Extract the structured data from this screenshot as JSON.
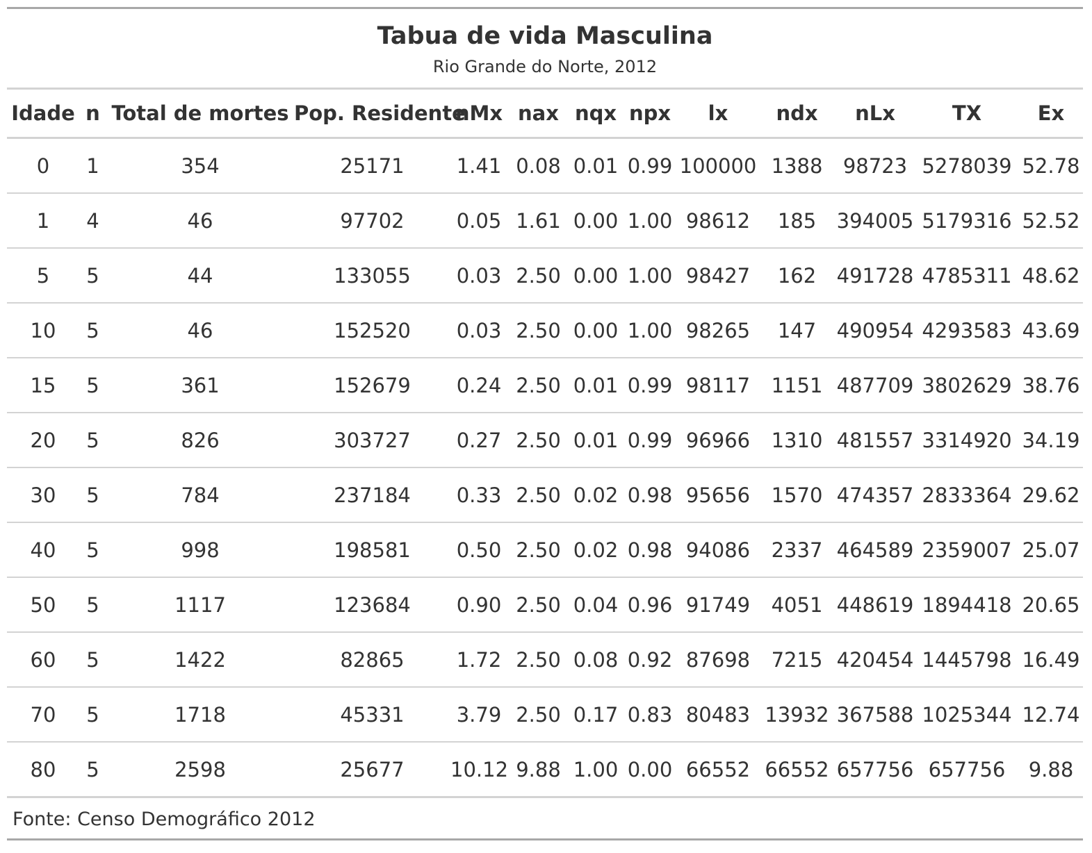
{
  "header": {
    "title": "Tabua de vida Masculina",
    "subtitle": "Rio Grande do Norte, 2012"
  },
  "columns": [
    "Idade",
    "n",
    "Total de mortes",
    "Pop. Residente",
    "nMx",
    "nax",
    "nqx",
    "npx",
    "lx",
    "ndx",
    "nLx",
    "TX",
    "Ex"
  ],
  "rows": [
    [
      "0",
      "1",
      "354",
      "25171",
      "1.41",
      "0.08",
      "0.01",
      "0.99",
      "100000",
      "1388",
      "98723",
      "5278039",
      "52.78"
    ],
    [
      "1",
      "4",
      "46",
      "97702",
      "0.05",
      "1.61",
      "0.00",
      "1.00",
      "98612",
      "185",
      "394005",
      "5179316",
      "52.52"
    ],
    [
      "5",
      "5",
      "44",
      "133055",
      "0.03",
      "2.50",
      "0.00",
      "1.00",
      "98427",
      "162",
      "491728",
      "4785311",
      "48.62"
    ],
    [
      "10",
      "5",
      "46",
      "152520",
      "0.03",
      "2.50",
      "0.00",
      "1.00",
      "98265",
      "147",
      "490954",
      "4293583",
      "43.69"
    ],
    [
      "15",
      "5",
      "361",
      "152679",
      "0.24",
      "2.50",
      "0.01",
      "0.99",
      "98117",
      "1151",
      "487709",
      "3802629",
      "38.76"
    ],
    [
      "20",
      "5",
      "826",
      "303727",
      "0.27",
      "2.50",
      "0.01",
      "0.99",
      "96966",
      "1310",
      "481557",
      "3314920",
      "34.19"
    ],
    [
      "30",
      "5",
      "784",
      "237184",
      "0.33",
      "2.50",
      "0.02",
      "0.98",
      "95656",
      "1570",
      "474357",
      "2833364",
      "29.62"
    ],
    [
      "40",
      "5",
      "998",
      "198581",
      "0.50",
      "2.50",
      "0.02",
      "0.98",
      "94086",
      "2337",
      "464589",
      "2359007",
      "25.07"
    ],
    [
      "50",
      "5",
      "1117",
      "123684",
      "0.90",
      "2.50",
      "0.04",
      "0.96",
      "91749",
      "4051",
      "448619",
      "1894418",
      "20.65"
    ],
    [
      "60",
      "5",
      "1422",
      "82865",
      "1.72",
      "2.50",
      "0.08",
      "0.92",
      "87698",
      "7215",
      "420454",
      "1445798",
      "16.49"
    ],
    [
      "70",
      "5",
      "1718",
      "45331",
      "3.79",
      "2.50",
      "0.17",
      "0.83",
      "80483",
      "13932",
      "367588",
      "1025344",
      "12.74"
    ],
    [
      "80",
      "5",
      "2598",
      "25677",
      "10.12",
      "9.88",
      "1.00",
      "0.00",
      "66552",
      "66552",
      "657756",
      "657756",
      "9.88"
    ]
  ],
  "footer": {
    "source": "Fonte: Censo Demográfico 2012"
  },
  "colors": {
    "text": "#333333",
    "outer_rule": "#a8a8a8",
    "inner_rule": "#d3d3d3"
  }
}
